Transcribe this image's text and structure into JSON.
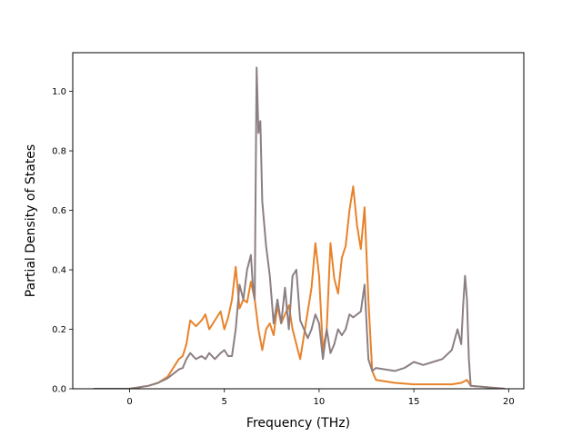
{
  "chart_data": {
    "type": "line",
    "xlabel": "Frequency (THz)",
    "ylabel": "Partial Density of States",
    "xlim": [
      -3.0,
      20.8
    ],
    "ylim": [
      0.0,
      1.13
    ],
    "xticks": [
      0,
      5,
      10,
      15,
      20
    ],
    "yticks": [
      0.0,
      0.2,
      0.4,
      0.6,
      0.8,
      1.0
    ],
    "xtick_labels": [
      "0",
      "5",
      "10",
      "15",
      "20"
    ],
    "ytick_labels": [
      "0.0",
      "0.2",
      "0.4",
      "0.6",
      "0.8",
      "1.0"
    ],
    "grid": false,
    "legend": "none",
    "series": [
      {
        "color": "#e8822a",
        "x": [
          -1.9,
          0.0,
          0.5,
          1.0,
          1.5,
          2.0,
          2.3,
          2.6,
          2.8,
          3.0,
          3.2,
          3.5,
          3.8,
          4.0,
          4.2,
          4.4,
          4.6,
          4.8,
          5.0,
          5.2,
          5.4,
          5.6,
          5.8,
          6.0,
          6.2,
          6.4,
          6.6,
          6.8,
          7.0,
          7.2,
          7.4,
          7.6,
          7.8,
          8.0,
          8.2,
          8.4,
          8.6,
          8.8,
          9.0,
          9.2,
          9.4,
          9.6,
          9.8,
          10.0,
          10.2,
          10.4,
          10.6,
          10.8,
          11.0,
          11.2,
          11.4,
          11.6,
          11.8,
          12.0,
          12.2,
          12.4,
          12.6,
          12.8,
          13.0,
          14.0,
          15.0,
          16.0,
          17.0,
          17.5,
          17.8,
          18.0,
          19.8
        ],
        "y": [
          0.0,
          0.0,
          0.005,
          0.01,
          0.02,
          0.04,
          0.07,
          0.1,
          0.11,
          0.15,
          0.23,
          0.21,
          0.23,
          0.25,
          0.2,
          0.22,
          0.24,
          0.26,
          0.2,
          0.24,
          0.3,
          0.41,
          0.27,
          0.3,
          0.29,
          0.36,
          0.3,
          0.2,
          0.13,
          0.2,
          0.22,
          0.18,
          0.28,
          0.22,
          0.25,
          0.28,
          0.2,
          0.15,
          0.1,
          0.18,
          0.26,
          0.34,
          0.49,
          0.38,
          0.13,
          0.2,
          0.49,
          0.37,
          0.32,
          0.44,
          0.48,
          0.6,
          0.68,
          0.55,
          0.47,
          0.61,
          0.3,
          0.06,
          0.03,
          0.02,
          0.015,
          0.015,
          0.015,
          0.02,
          0.03,
          0.01,
          0.0
        ]
      },
      {
        "color": "#8c7f82",
        "x": [
          -1.9,
          0.0,
          0.5,
          1.0,
          1.5,
          2.0,
          2.3,
          2.6,
          2.8,
          3.0,
          3.2,
          3.5,
          3.8,
          4.0,
          4.2,
          4.5,
          4.8,
          5.0,
          5.2,
          5.4,
          5.6,
          5.8,
          6.0,
          6.2,
          6.4,
          6.5,
          6.6,
          6.7,
          6.8,
          6.9,
          7.0,
          7.2,
          7.4,
          7.6,
          7.8,
          8.0,
          8.2,
          8.4,
          8.6,
          8.8,
          9.0,
          9.2,
          9.4,
          9.6,
          9.8,
          10.0,
          10.2,
          10.4,
          10.6,
          10.8,
          11.0,
          11.2,
          11.4,
          11.6,
          11.8,
          12.0,
          12.2,
          12.4,
          12.6,
          12.8,
          13.0,
          14.0,
          14.5,
          15.0,
          15.5,
          16.0,
          16.5,
          17.0,
          17.3,
          17.5,
          17.6,
          17.7,
          17.8,
          17.9,
          18.0,
          19.8
        ],
        "y": [
          0.0,
          0.0,
          0.005,
          0.01,
          0.02,
          0.035,
          0.05,
          0.065,
          0.07,
          0.1,
          0.12,
          0.1,
          0.11,
          0.1,
          0.12,
          0.1,
          0.12,
          0.13,
          0.11,
          0.11,
          0.2,
          0.35,
          0.3,
          0.4,
          0.45,
          0.35,
          0.3,
          1.08,
          0.86,
          0.9,
          0.63,
          0.48,
          0.38,
          0.22,
          0.3,
          0.22,
          0.34,
          0.2,
          0.38,
          0.4,
          0.23,
          0.2,
          0.17,
          0.2,
          0.25,
          0.22,
          0.1,
          0.2,
          0.12,
          0.15,
          0.2,
          0.18,
          0.2,
          0.25,
          0.24,
          0.25,
          0.26,
          0.35,
          0.1,
          0.06,
          0.07,
          0.06,
          0.07,
          0.09,
          0.08,
          0.09,
          0.1,
          0.13,
          0.2,
          0.15,
          0.28,
          0.38,
          0.3,
          0.1,
          0.01,
          0.0
        ]
      }
    ]
  }
}
